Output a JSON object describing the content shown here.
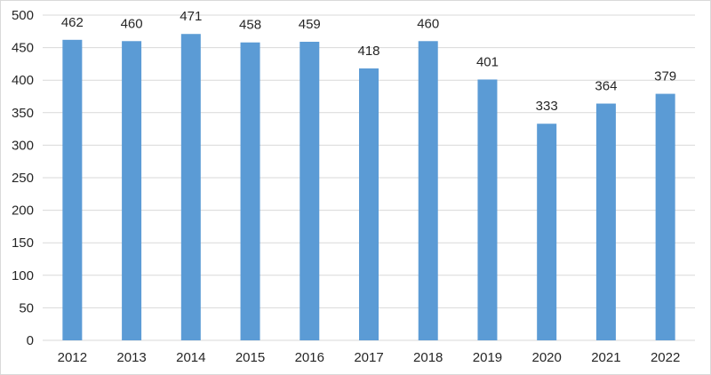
{
  "colors": {
    "bar": "#5b9bd5",
    "grid": "#d9d9d9",
    "text": "#262626",
    "background": "#ffffff",
    "border": "#d9d9d9"
  },
  "chart_data": {
    "type": "bar",
    "categories": [
      "2012",
      "2013",
      "2014",
      "2015",
      "2016",
      "2017",
      "2018",
      "2019",
      "2020",
      "2021",
      "2022"
    ],
    "values": [
      462,
      460,
      471,
      458,
      459,
      418,
      460,
      401,
      333,
      364,
      379
    ],
    "title": "",
    "xlabel": "",
    "ylabel": "",
    "ylim": [
      0,
      500
    ],
    "yticks": [
      0,
      50,
      100,
      150,
      200,
      250,
      300,
      350,
      400,
      450,
      500
    ],
    "grid": true,
    "data_labels": true,
    "legend": "none"
  }
}
